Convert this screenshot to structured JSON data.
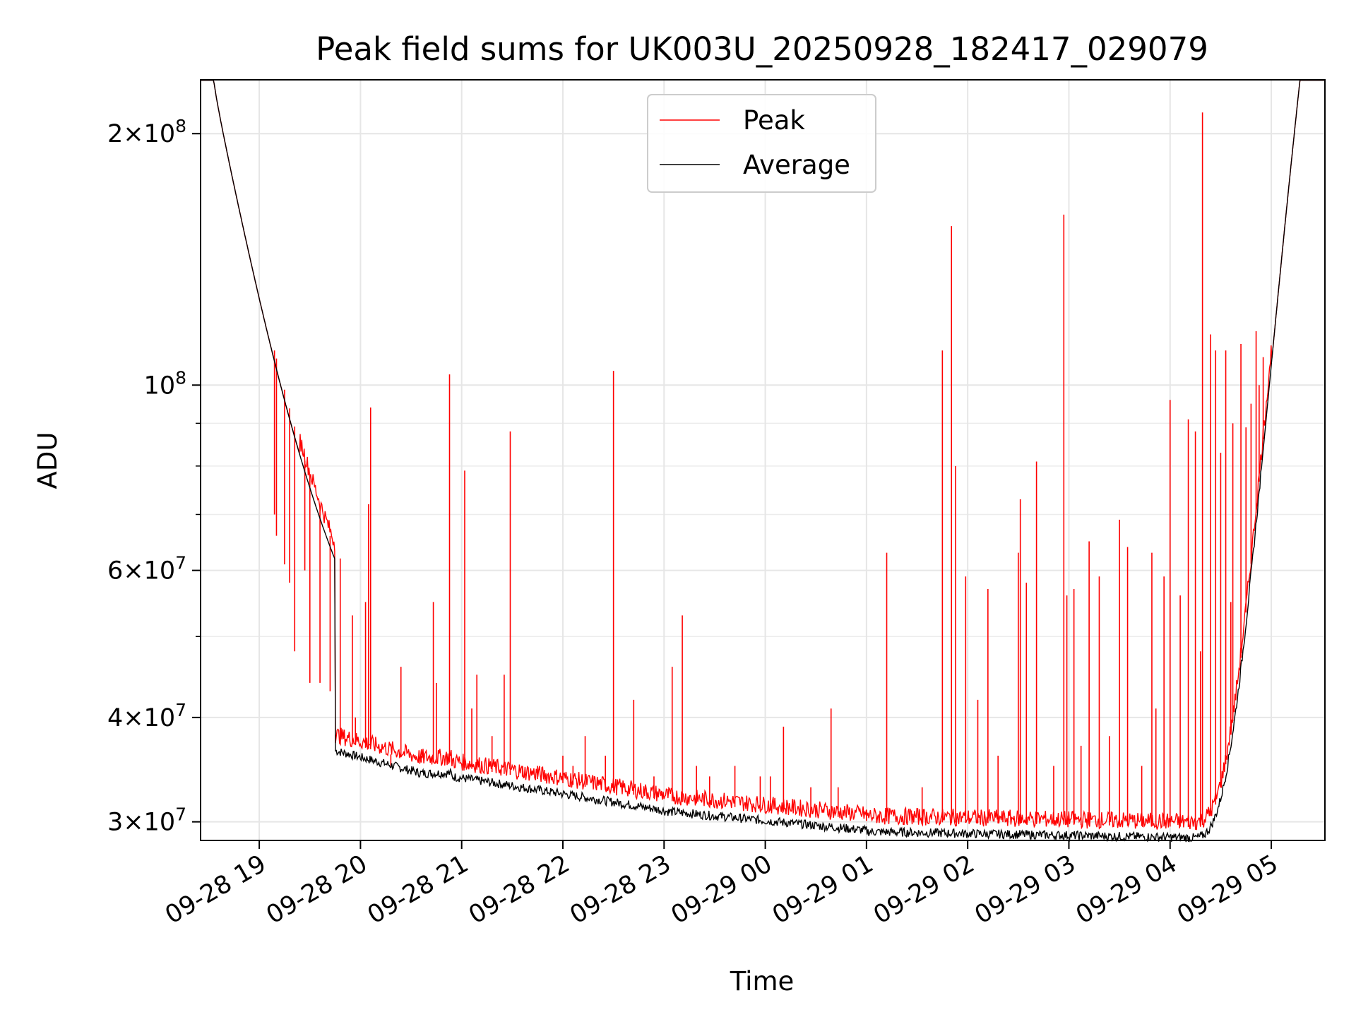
{
  "chart_data": {
    "type": "line",
    "title": "Peak field sums for UK003U_20250928_182417_029079",
    "xlabel": "Time",
    "ylabel": "ADU",
    "yscale": "log",
    "grid": true,
    "legend_position": "top-center",
    "x_range_hours": [
      -0.58,
      10.53
    ],
    "x_origin": "09-28 19:00",
    "ylim": [
      28500000,
      232000000
    ],
    "x_ticks": [
      {
        "hour": 0,
        "label": "09-28 19"
      },
      {
        "hour": 1,
        "label": "09-28 20"
      },
      {
        "hour": 2,
        "label": "09-28 21"
      },
      {
        "hour": 3,
        "label": "09-28 22"
      },
      {
        "hour": 4,
        "label": "09-28 23"
      },
      {
        "hour": 5,
        "label": "09-29 00"
      },
      {
        "hour": 6,
        "label": "09-29 01"
      },
      {
        "hour": 7,
        "label": "09-29 02"
      },
      {
        "hour": 8,
        "label": "09-29 03"
      },
      {
        "hour": 9,
        "label": "09-29 04"
      },
      {
        "hour": 10,
        "label": "09-29 05"
      }
    ],
    "y_ticks": [
      {
        "value": 30000000,
        "mantissa": "3",
        "exp": "7"
      },
      {
        "value": 40000000,
        "mantissa": "4",
        "exp": "7"
      },
      {
        "value": 60000000,
        "mantissa": "6",
        "exp": "7"
      },
      {
        "value": 100000000,
        "mantissa": "",
        "exp": "8"
      },
      {
        "value": 200000000,
        "mantissa": "2",
        "exp": "8"
      }
    ],
    "y_minor_ticks": [
      50000000,
      70000000,
      80000000,
      90000000
    ],
    "series": [
      {
        "name": "Peak",
        "color": "#ff0000",
        "spikes": [
          [
            0.15,
            70
          ],
          [
            0.17,
            66
          ],
          [
            0.25,
            61
          ],
          [
            0.3,
            58
          ],
          [
            0.35,
            48
          ],
          [
            0.45,
            60
          ],
          [
            0.5,
            44
          ],
          [
            0.6,
            44
          ],
          [
            0.7,
            43
          ],
          [
            0.8,
            62
          ],
          [
            0.92,
            53
          ],
          [
            0.95,
            40
          ],
          [
            1.05,
            55
          ],
          [
            1.08,
            72
          ],
          [
            1.1,
            94
          ],
          [
            1.3,
            35
          ],
          [
            1.4,
            46
          ],
          [
            1.6,
            36
          ],
          [
            1.72,
            55
          ],
          [
            1.75,
            44
          ],
          [
            1.88,
            103
          ],
          [
            2.03,
            79
          ],
          [
            2.1,
            41
          ],
          [
            2.15,
            45
          ],
          [
            2.3,
            38
          ],
          [
            2.42,
            45
          ],
          [
            2.48,
            88
          ],
          [
            2.6,
            35
          ],
          [
            2.75,
            35
          ],
          [
            3.0,
            36
          ],
          [
            3.1,
            35
          ],
          [
            3.22,
            38
          ],
          [
            3.42,
            36
          ],
          [
            3.5,
            104
          ],
          [
            3.7,
            42
          ],
          [
            3.9,
            34
          ],
          [
            4.08,
            46
          ],
          [
            4.18,
            53
          ],
          [
            4.32,
            35
          ],
          [
            4.45,
            34
          ],
          [
            4.7,
            35
          ],
          [
            4.95,
            34
          ],
          [
            5.05,
            34
          ],
          [
            5.18,
            39
          ],
          [
            5.45,
            33
          ],
          [
            5.65,
            41
          ],
          [
            5.72,
            33
          ],
          [
            6.0,
            31
          ],
          [
            6.2,
            63
          ],
          [
            6.55,
            33
          ],
          [
            6.75,
            110
          ],
          [
            6.84,
            155
          ],
          [
            6.88,
            80
          ],
          [
            6.98,
            59
          ],
          [
            7.1,
            42
          ],
          [
            7.2,
            57
          ],
          [
            7.3,
            36
          ],
          [
            7.5,
            63
          ],
          [
            7.52,
            73
          ],
          [
            7.58,
            58
          ],
          [
            7.68,
            81
          ],
          [
            7.85,
            35
          ],
          [
            7.95,
            160
          ],
          [
            7.98,
            56
          ],
          [
            8.05,
            57
          ],
          [
            8.12,
            37
          ],
          [
            8.2,
            65
          ],
          [
            8.3,
            59
          ],
          [
            8.4,
            38
          ],
          [
            8.5,
            69
          ],
          [
            8.58,
            64
          ],
          [
            8.72,
            35
          ],
          [
            8.82,
            63
          ],
          [
            8.86,
            41
          ],
          [
            8.94,
            59
          ],
          [
            9.0,
            96
          ],
          [
            9.1,
            56
          ],
          [
            9.18,
            91
          ],
          [
            9.25,
            88
          ],
          [
            9.3,
            48
          ],
          [
            9.32,
            212
          ],
          [
            9.4,
            115
          ],
          [
            9.45,
            110
          ],
          [
            9.5,
            83
          ],
          [
            9.55,
            110
          ],
          [
            9.6,
            55
          ],
          [
            9.62,
            90
          ],
          [
            9.7,
            112
          ],
          [
            9.75,
            89
          ],
          [
            9.8,
            95
          ],
          [
            9.85,
            116
          ],
          [
            9.88,
            100
          ],
          [
            9.92,
            108
          ]
        ]
      },
      {
        "name": "Average",
        "color": "#000000"
      }
    ]
  }
}
